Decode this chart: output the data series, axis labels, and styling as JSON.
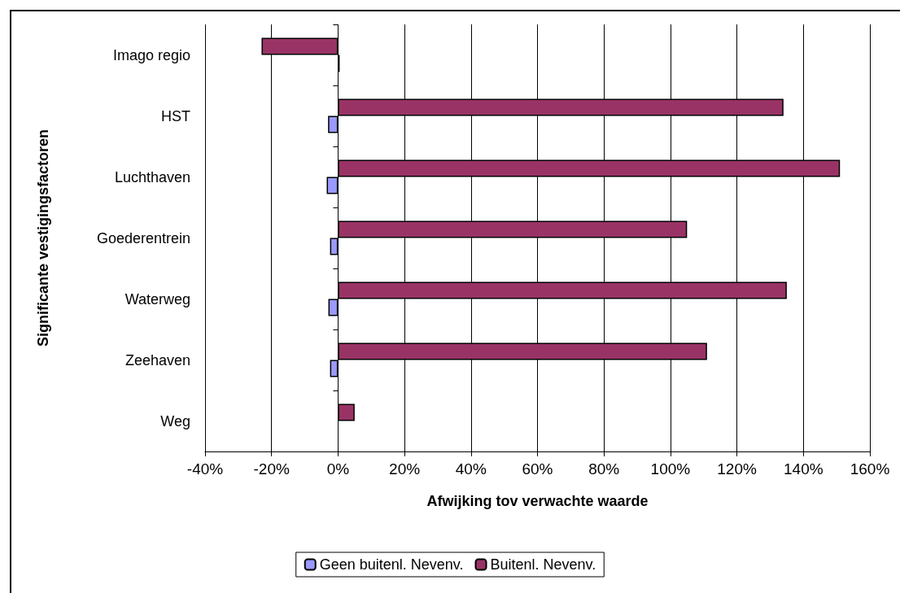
{
  "chart_data": {
    "type": "bar",
    "orientation": "horizontal",
    "xlabel": "Afwijking tov verwachte waarde",
    "ylabel": "Significante vestigingsfactoren",
    "categories": [
      "Imago regio",
      "HST",
      "Luchthaven",
      "Goederentrein",
      "Waterweg",
      "Zeehaven",
      "Weg"
    ],
    "series": [
      {
        "name": "Geen buitenl. Nevenv.",
        "color": "#9999ff",
        "values": [
          0.5,
          -3,
          -3.4,
          -2.4,
          -2.9,
          -2.4,
          null
        ]
      },
      {
        "name": "Buitenl. Nevenv.",
        "color": "#993366",
        "values": [
          -23,
          134,
          151,
          105,
          135,
          111,
          5
        ]
      }
    ],
    "xlim": [
      -40,
      160
    ],
    "xticks": [
      {
        "value": -40,
        "label": "-40%"
      },
      {
        "value": -20,
        "label": "-20%"
      },
      {
        "value": 0,
        "label": "0%"
      },
      {
        "value": 20,
        "label": "20%"
      },
      {
        "value": 40,
        "label": "40%"
      },
      {
        "value": 60,
        "label": "60%"
      },
      {
        "value": 80,
        "label": "80%"
      },
      {
        "value": 100,
        "label": "100%"
      },
      {
        "value": 120,
        "label": "120%"
      },
      {
        "value": 140,
        "label": "140%"
      },
      {
        "value": 160,
        "label": "160%"
      }
    ],
    "grid": "x",
    "legend": "bottom"
  }
}
